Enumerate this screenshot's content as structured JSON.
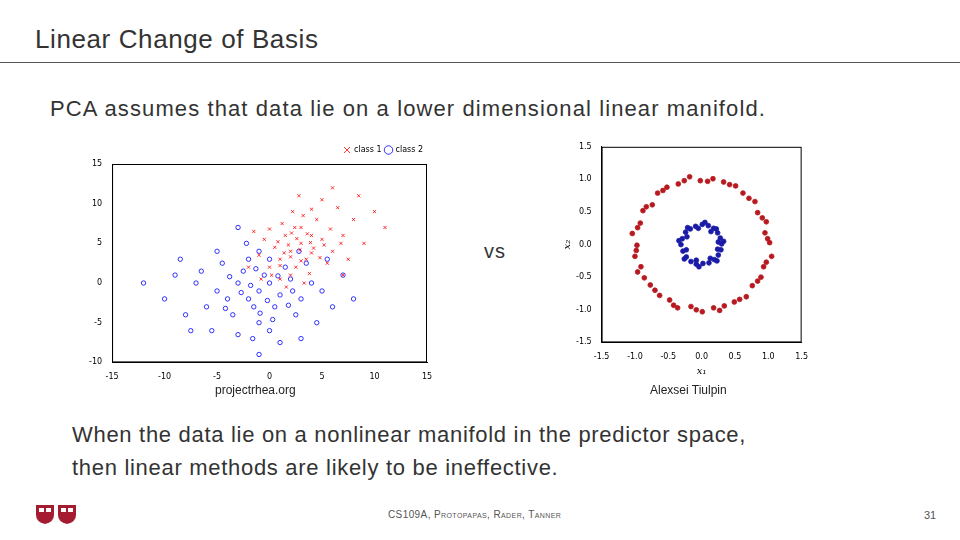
{
  "slide": {
    "title": "Linear Change of Basis",
    "subtitle": "PCA assumes that data lie on a lower dimensional linear manifold.",
    "separator": "vs",
    "caption_left": "projectrhea.org",
    "caption_right": "Alexsei Tiulpin",
    "body": [
      "When the data lie on a nonlinear manifold in the predictor space,",
      "then linear methods are likely to be ineffective."
    ],
    "footer": "CS109A, Protopapas, Rader, Tanner",
    "page": 31
  },
  "chart_data": [
    {
      "type": "scatter",
      "xlim": [
        -15,
        15
      ],
      "xticks": [
        -15,
        -10,
        -5,
        0,
        5,
        10,
        15
      ],
      "ylim": [
        -10,
        15
      ],
      "yticks": [
        -10,
        -5,
        0,
        5,
        10,
        15
      ],
      "grid": false,
      "legend": "upper right",
      "series": [
        {
          "name": "class 1",
          "color": "#ff0000",
          "marker": "x",
          "x": [
            2,
            3,
            1,
            4,
            2.5,
            0.5,
            3.5,
            5,
            1.5,
            2,
            6,
            4.5,
            0,
            3,
            -1,
            7,
            2.2,
            5.5,
            1,
            8,
            3.8,
            -0.5,
            6.5,
            2.8,
            4,
            1.2,
            9,
            0.2,
            5,
            -2,
            3.3,
            7.5,
            1.8,
            2.6,
            4.2,
            3,
            0.8,
            5.8,
            -1.5,
            10,
            6,
            2,
            3.6,
            1,
            4.8,
            2.4,
            7,
            -0.8,
            8.5,
            3.2,
            5.2,
            1.6,
            4,
            0,
            11,
            2.9,
            6.8,
            1.4,
            3.9,
            2.1
          ],
          "values": [
            4,
            5,
            3,
            6,
            2,
            4.5,
            3,
            5.5,
            6,
            1,
            4,
            8,
            2,
            7,
            3.5,
            6,
            9,
            2.5,
            0.5,
            8,
            1.2,
            5.5,
            9.5,
            11,
            3.8,
            7.5,
            5,
            1,
            10.5,
            2,
            0,
            3,
            4.8,
            5.6,
            4.4,
            2.8,
            5.2,
            6.8,
            6.5,
            9,
            12,
            3.3,
            6.2,
            2.2,
            3.2,
            7,
            1,
            0.5,
            11,
            8.5,
            4.8,
            -0.5,
            9.3,
            6.8,
            7,
            4.2,
            5,
            3.8,
            5.1,
            6.3
          ]
        },
        {
          "name": "class 2",
          "color": "#0000ff",
          "marker": "ring",
          "x": [
            -1,
            0,
            -2,
            1,
            -3,
            -0.5,
            -1.5,
            2,
            -4,
            0.5,
            -2.5,
            3,
            -5,
            -1,
            1.5,
            -3.5,
            4,
            -6,
            0,
            -2,
            2.5,
            -7,
            -4.5,
            5,
            -1,
            -8,
            3.5,
            -3,
            1,
            -9,
            6,
            -5.5,
            -0.2,
            -1.8,
            0.8,
            -2.7,
            -0.9,
            2.2,
            -3.8,
            -1.3,
            0.3,
            -4.2,
            1.8,
            -6.5,
            -2.2,
            4.5,
            -10,
            7,
            -5,
            -1.6,
            2.8,
            -7.5,
            0,
            -12,
            8,
            -3,
            3,
            -8.5,
            5.5,
            -1
          ],
          "values": [
            -1,
            0,
            -2,
            -1.5,
            0,
            1,
            -3,
            0.5,
            -2,
            -3,
            1.5,
            -2,
            -1,
            -5,
            2,
            -4,
            0,
            -3,
            -6,
            3,
            -4,
            0,
            2.5,
            -1,
            4,
            -4,
            2.5,
            -6.5,
            -7.5,
            1,
            -3,
            -6,
            -2.2,
            -0.3,
            0.9,
            -1.2,
            -3.8,
            -1,
            0.8,
            1.8,
            -4.6,
            -3.2,
            -2.8,
            1.5,
            5,
            -5,
            -2,
            1,
            4,
            -7,
            4,
            -6,
            3,
            0,
            -2,
            7,
            -7,
            3,
            3,
            -9
          ]
        }
      ]
    },
    {
      "type": "scatter",
      "xlabel": "x₁",
      "ylabel": "x₂",
      "xlim": [
        -1.5,
        1.5
      ],
      "xticks": [
        -1.5,
        {
          "value": -1,
          "label": "-1.0"
        },
        -0.5,
        {
          "value": 0,
          "label": "0.0"
        },
        0.5,
        {
          "value": 1,
          "label": "1.0"
        },
        1.5
      ],
      "ylim": [
        -1.5,
        1.5
      ],
      "yticks": [
        -1.5,
        {
          "value": -1,
          "label": "-1.0"
        },
        -0.5,
        {
          "value": 0,
          "label": "0.0"
        },
        0.5,
        {
          "value": 1,
          "label": "1.0"
        },
        1.5
      ],
      "grid": false,
      "series": [
        {
          "color": "#b8191f",
          "marker": "dot",
          "x": [
            1.02,
            0.95,
            0.97,
            0.84,
            0.8,
            0.62,
            0.51,
            0.33,
            0.17,
            -0.02,
            -0.18,
            -0.35,
            -0.52,
            -0.66,
            -0.74,
            -0.88,
            -0.92,
            -1.04,
            -0.97,
            -1.0,
            -0.91,
            -0.86,
            -0.77,
            -0.63,
            -0.48,
            -0.36,
            -0.16,
            0.01,
            0.18,
            0.34,
            0.49,
            0.67,
            0.76,
            0.89,
            0.93,
            1.05,
            0.99,
            0.91,
            0.71,
            0.42,
            0.09,
            -0.26,
            -0.58,
            -0.83,
            -0.96,
            -0.98,
            -0.96,
            -0.7,
            -0.42,
            -0.08,
            0.27,
            0.57,
            0.84,
            0.97
          ],
          "values": [
            0.03,
            0.18,
            0.35,
            0.49,
            0.66,
            0.79,
            0.9,
            0.96,
            1.01,
            0.98,
            1.04,
            0.93,
            0.88,
            0.79,
            0.61,
            0.52,
            0.33,
            0.17,
            -0.01,
            -0.18,
            -0.34,
            -0.51,
            -0.62,
            -0.78,
            -0.85,
            -0.97,
            -0.95,
            -1.03,
            -0.97,
            -0.94,
            -0.88,
            -0.8,
            -0.63,
            -0.5,
            -0.34,
            -0.18,
            0.09,
            0.41,
            0.71,
            0.92,
            0.97,
            0.98,
            0.83,
            0.58,
            0.26,
            -0.09,
            -0.42,
            -0.7,
            -0.93,
            -1.0,
            -1.01,
            -0.84,
            -0.56,
            -0.27
          ]
        },
        {
          "color": "#1a1aa8",
          "marker": "dot",
          "x": [
            0.3,
            0.28,
            0.24,
            0.18,
            0.1,
            0.01,
            -0.09,
            -0.17,
            -0.24,
            -0.29,
            -0.31,
            -0.28,
            -0.23,
            -0.16,
            -0.08,
            0.02,
            0.11,
            0.19,
            0.25,
            0.29,
            0.33,
            0.22,
            0.05,
            -0.21,
            -0.34,
            -0.26,
            -0.04,
            0.23,
            0.25,
            0.14,
            -0.05,
            -0.22,
            -0.23,
            -0.08,
            0.13,
            0.24
          ],
          "values": [
            0.01,
            0.1,
            0.18,
            0.25,
            0.29,
            0.31,
            0.28,
            0.24,
            0.19,
            0.09,
            0.0,
            -0.1,
            -0.19,
            -0.26,
            -0.3,
            -0.29,
            -0.28,
            -0.23,
            -0.16,
            -0.08,
            0.05,
            0.24,
            0.34,
            0.26,
            0.06,
            -0.22,
            -0.34,
            -0.25,
            0.04,
            0.2,
            0.25,
            0.12,
            -0.08,
            -0.24,
            -0.21,
            -0.07
          ]
        }
      ]
    }
  ]
}
